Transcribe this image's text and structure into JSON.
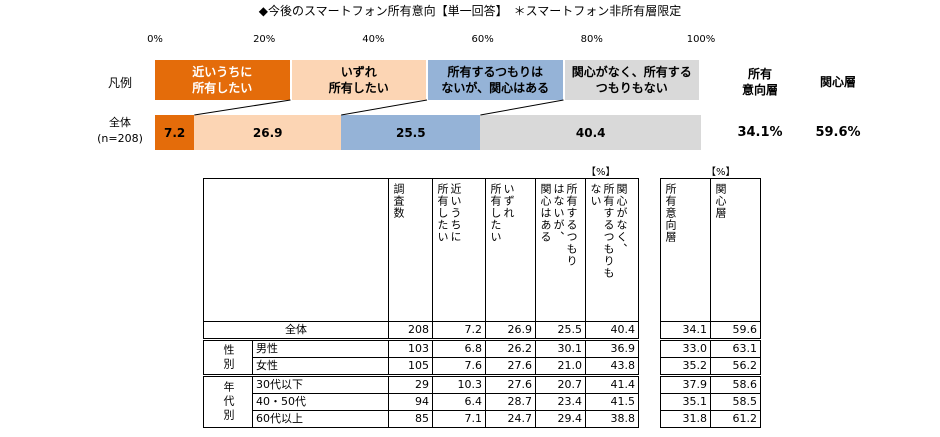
{
  "chart_data": {
    "type": "bar",
    "title": "◆今後のスマートフォン所有意向【単一回答】　＊スマートフォン非所有層限定",
    "legend_label": "凡例",
    "categories": [
      "全体\n(n=208)"
    ],
    "xlim": [
      0,
      100
    ],
    "xticks": [
      {
        "value": 0,
        "label": "0%"
      },
      {
        "value": 20,
        "label": "20%"
      },
      {
        "value": 40,
        "label": "40%"
      },
      {
        "value": 60,
        "label": "60%"
      },
      {
        "value": 80,
        "label": "80%"
      },
      {
        "value": 100,
        "label": "100%"
      }
    ],
    "series": [
      {
        "name": "近いうちに\n所有したい",
        "color": "#e46c0a",
        "values": [
          7.2
        ]
      },
      {
        "name": "いずれ\n所有したい",
        "color": "#fcd5b4",
        "values": [
          26.9
        ]
      },
      {
        "name": "所有するつもりは\nないが、関心はある",
        "color": "#95b3d7",
        "values": [
          25.5
        ]
      },
      {
        "name": "関心がなく、所有する\nつもりもない",
        "color": "#d9d9d9",
        "values": [
          40.4
        ]
      }
    ],
    "summary": {
      "headers": [
        "所有\n意向層",
        "関心層"
      ],
      "values": [
        34.1,
        59.6
      ],
      "value_labels": [
        "34.1%",
        "59.6%"
      ]
    }
  },
  "table": {
    "unit_labels": [
      "【%】",
      "【%】"
    ],
    "headers": [
      "調査数",
      "近いうちに\n所有したい",
      "いずれ\n所有したい",
      "所有するつもり\nはないが、\n関心はある",
      "関心がなく、\n所有するつもりも\nない",
      "所有意向層",
      "関心層"
    ],
    "total": {
      "label": "全体",
      "cells": [
        "208",
        "7.2",
        "26.9",
        "25.5",
        "40.4",
        "34.1",
        "59.6"
      ]
    },
    "groups": [
      {
        "label": "性別",
        "rows": [
          {
            "label": "男性",
            "cells": [
              "103",
              "6.8",
              "26.2",
              "30.1",
              "36.9",
              "33.0",
              "63.1"
            ]
          },
          {
            "label": "女性",
            "cells": [
              "105",
              "7.6",
              "27.6",
              "21.0",
              "43.8",
              "35.2",
              "56.2"
            ]
          }
        ]
      },
      {
        "label": "年代別",
        "rows": [
          {
            "label": "30代以下",
            "cells": [
              "29",
              "10.3",
              "27.6",
              "20.7",
              "41.4",
              "37.9",
              "58.6"
            ]
          },
          {
            "label": "40・50代",
            "cells": [
              "94",
              "6.4",
              "28.7",
              "23.4",
              "41.5",
              "35.1",
              "58.5"
            ]
          },
          {
            "label": "60代以上",
            "cells": [
              "85",
              "7.1",
              "24.7",
              "29.4",
              "38.8",
              "31.8",
              "61.2"
            ]
          }
        ]
      }
    ]
  }
}
